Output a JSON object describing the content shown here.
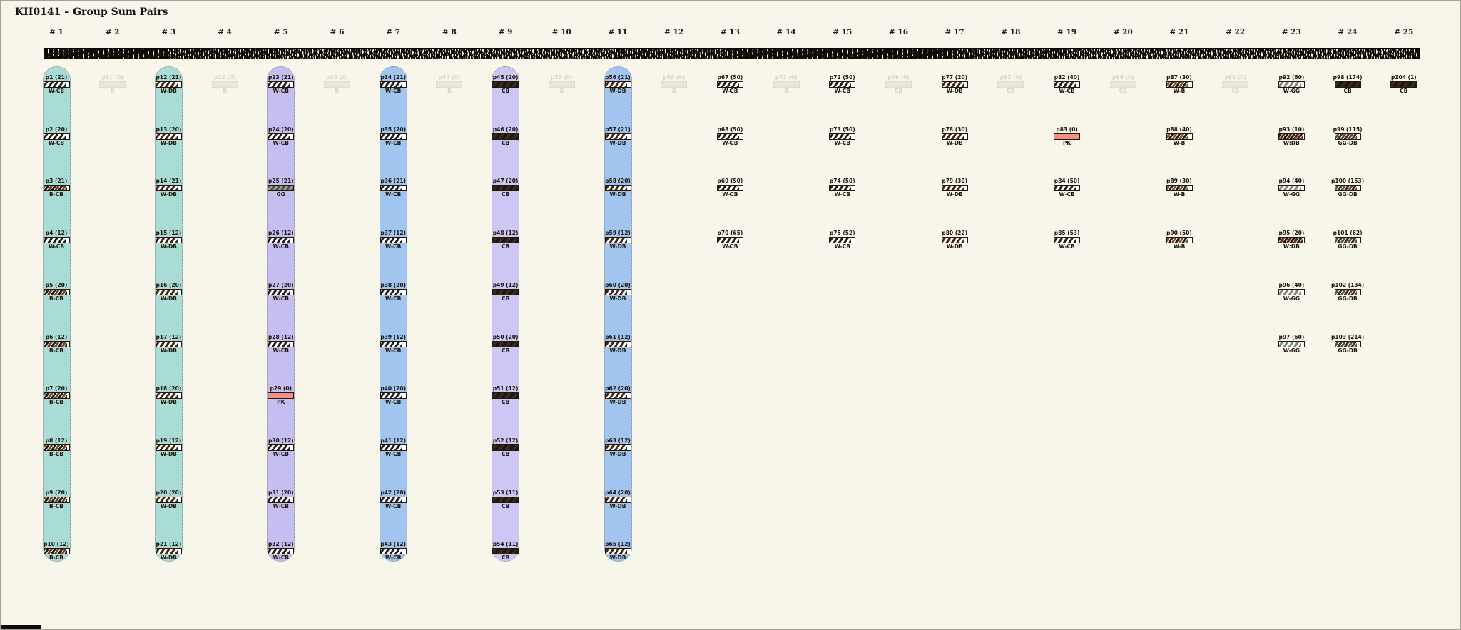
{
  "title": "KH0141 – Group Sum Pairs",
  "palette": {
    "background": "#f8f6eb",
    "pill_teal": "#aadcd6",
    "pill_lavender": "#c5bef1",
    "pill_blue": "#a1c5ef",
    "pill_lavender_alt": "#ccc7f4",
    "label_text": "#1d130a",
    "faded_text": "#dbd4bf",
    "faded_bar": "#ebe6d8"
  },
  "bar_styles": {
    "W-CB": {
      "type": "stripes",
      "colors": [
        "#261d14"
      ],
      "bg": "#ffffff",
      "fill": 86
    },
    "W-DB": {
      "type": "stripes",
      "colors": [
        "#4a230d"
      ],
      "bg": "#ffffff",
      "fill": 86
    },
    "B-CB": {
      "type": "stripes",
      "colors": [
        "#23180e",
        "#71451f"
      ],
      "bg": "#ffffff",
      "fill": 92
    },
    "CB": {
      "type": "stripes",
      "colors": [
        "#1f150c",
        "#3b2c1b"
      ],
      "bg": "#2a1e12",
      "fill": 100
    },
    "GG": {
      "type": "stripes",
      "colors": [
        "#49533d"
      ],
      "bg": "#9aa390",
      "fill": 100
    },
    "PK": {
      "type": "solid",
      "bg": "#f2917f",
      "fill": 100
    },
    "W-B": {
      "type": "stripes",
      "colors": [
        "#8d5422",
        "#2a2018"
      ],
      "bg": "#ffffff",
      "fill": 84
    },
    "W-GG": {
      "type": "stripes",
      "colors": [
        "#7d8871"
      ],
      "bg": "#ffffff",
      "fill": 88
    },
    "W:DB": {
      "type": "stripes",
      "colors": [
        "#5c2a16",
        "#241c14"
      ],
      "bg": "#efd3c6",
      "fill": 96
    },
    "GG-DB": {
      "type": "stripes",
      "colors": [
        "#4b5540",
        "#54241a"
      ],
      "bg": "#ffffff",
      "fill": 88
    },
    "B": {
      "type": "empty"
    }
  },
  "columns": [
    {
      "header": "# 1",
      "pill": "pill_teal",
      "items": [
        {
          "label": "p1 (21)",
          "code": "W-CB"
        },
        {
          "label": "p2 (20)",
          "code": "W-CB"
        },
        {
          "label": "p3 (21)",
          "code": "B-CB"
        },
        {
          "label": "p4 (12)",
          "code": "W-CB"
        },
        {
          "label": "p5 (20)",
          "code": "B-CB"
        },
        {
          "label": "p6 (12)",
          "code": "B-CB"
        },
        {
          "label": "p7 (20)",
          "code": "B-CB"
        },
        {
          "label": "p8 (12)",
          "code": "B-CB"
        },
        {
          "label": "p9 (20)",
          "code": "B-CB"
        },
        {
          "label": "p10 (12)",
          "code": "B-CB"
        }
      ]
    },
    {
      "header": "# 2",
      "pill": null,
      "items": [
        {
          "label": "p11 (0)",
          "code": "B",
          "faded": true
        }
      ]
    },
    {
      "header": "# 3",
      "pill": "pill_teal",
      "items": [
        {
          "label": "p12 (21)",
          "code": "W-DB"
        },
        {
          "label": "p13 (20)",
          "code": "W-DB"
        },
        {
          "label": "p14 (21)",
          "code": "W-DB"
        },
        {
          "label": "p15 (12)",
          "code": "W-DB"
        },
        {
          "label": "p16 (20)",
          "code": "W-DB"
        },
        {
          "label": "p17 (12)",
          "code": "W-DB"
        },
        {
          "label": "p18 (20)",
          "code": "W-DB"
        },
        {
          "label": "p19 (12)",
          "code": "W-DB"
        },
        {
          "label": "p20 (20)",
          "code": "W-DB"
        },
        {
          "label": "p21 (12)",
          "code": "W-DB"
        }
      ]
    },
    {
      "header": "# 4",
      "pill": null,
      "items": [
        {
          "label": "p22 (0)",
          "code": "B",
          "faded": true
        }
      ]
    },
    {
      "header": "# 5",
      "pill": "pill_lavender",
      "items": [
        {
          "label": "p23 (21)",
          "code": "W-CB"
        },
        {
          "label": "p24 (20)",
          "code": "W-CB"
        },
        {
          "label": "p25 (21)",
          "code": "GG"
        },
        {
          "label": "p26 (12)",
          "code": "W-CB"
        },
        {
          "label": "p27 (20)",
          "code": "W-CB"
        },
        {
          "label": "p28 (12)",
          "code": "W-CB"
        },
        {
          "label": "p29 (0)",
          "code": "PK"
        },
        {
          "label": "p30 (12)",
          "code": "W-CB"
        },
        {
          "label": "p31 (20)",
          "code": "W-CB"
        },
        {
          "label": "p32 (12)",
          "code": "W-CB"
        }
      ]
    },
    {
      "header": "# 6",
      "pill": null,
      "items": [
        {
          "label": "p33 (0)",
          "code": "B",
          "faded": true
        }
      ]
    },
    {
      "header": "# 7",
      "pill": "pill_blue",
      "items": [
        {
          "label": "p34 (21)",
          "code": "W-CB"
        },
        {
          "label": "p35 (20)",
          "code": "W-CB"
        },
        {
          "label": "p36 (21)",
          "code": "W-CB"
        },
        {
          "label": "p37 (12)",
          "code": "W-CB"
        },
        {
          "label": "p38 (20)",
          "code": "W-CB"
        },
        {
          "label": "p39 (12)",
          "code": "W-CB"
        },
        {
          "label": "p40 (20)",
          "code": "W-CB"
        },
        {
          "label": "p41 (12)",
          "code": "W-CB"
        },
        {
          "label": "p42 (20)",
          "code": "W-CB"
        },
        {
          "label": "p43 (12)",
          "code": "W-CB"
        }
      ]
    },
    {
      "header": "# 8",
      "pill": null,
      "items": [
        {
          "label": "p44 (0)",
          "code": "B",
          "faded": true
        }
      ]
    },
    {
      "header": "# 9",
      "pill": "pill_lavender_alt",
      "items": [
        {
          "label": "p45 (20)",
          "code": "CB"
        },
        {
          "label": "p46 (20)",
          "code": "CB"
        },
        {
          "label": "p47 (20)",
          "code": "CB"
        },
        {
          "label": "p48 (12)",
          "code": "CB"
        },
        {
          "label": "p49 (12)",
          "code": "CB"
        },
        {
          "label": "p50 (20)",
          "code": "CB"
        },
        {
          "label": "p51 (12)",
          "code": "CB"
        },
        {
          "label": "p52 (12)",
          "code": "CB"
        },
        {
          "label": "p53 (11)",
          "code": "CB"
        },
        {
          "label": "p54 (11)",
          "code": "CB"
        }
      ]
    },
    {
      "header": "# 10",
      "pill": null,
      "items": [
        {
          "label": "p55 (0)",
          "code": "B",
          "faded": true
        }
      ]
    },
    {
      "header": "# 11",
      "pill": "pill_blue",
      "items": [
        {
          "label": "p56 (21)",
          "code": "W-DB"
        },
        {
          "label": "p57 (21)",
          "code": "W-DB"
        },
        {
          "label": "p58 (20)",
          "code": "W-DB"
        },
        {
          "label": "p59 (12)",
          "code": "W-DB"
        },
        {
          "label": "p60 (20)",
          "code": "W-DB"
        },
        {
          "label": "p61 (12)",
          "code": "W-DB"
        },
        {
          "label": "p62 (20)",
          "code": "W-DB"
        },
        {
          "label": "p63 (12)",
          "code": "W-DB"
        },
        {
          "label": "p64 (20)",
          "code": "W-DB"
        },
        {
          "label": "p65 (12)",
          "code": "W-DB"
        }
      ]
    },
    {
      "header": "# 12",
      "pill": null,
      "items": [
        {
          "label": "p66 (0)",
          "code": "B",
          "faded": true
        }
      ]
    },
    {
      "header": "# 13",
      "pill": null,
      "items": [
        {
          "label": "p67 (50)",
          "code": "W-CB"
        },
        {
          "label": "p68 (50)",
          "code": "W-CB"
        },
        {
          "label": "p69 (50)",
          "code": "W-CB"
        },
        {
          "label": "p70 (65)",
          "code": "W-CB"
        }
      ]
    },
    {
      "header": "# 14",
      "pill": null,
      "items": [
        {
          "label": "p71 (0)",
          "code": "B",
          "faded": true
        }
      ]
    },
    {
      "header": "# 15",
      "pill": null,
      "items": [
        {
          "label": "p72 (50)",
          "code": "W-CB"
        },
        {
          "label": "p73 (50)",
          "code": "W-CB"
        },
        {
          "label": "p74 (50)",
          "code": "W-CB"
        },
        {
          "label": "p75 (52)",
          "code": "W-CB"
        }
      ]
    },
    {
      "header": "# 16",
      "pill": null,
      "items": [
        {
          "label": "p76 (0)",
          "code": "CB",
          "faded": true
        }
      ]
    },
    {
      "header": "# 17",
      "pill": null,
      "items": [
        {
          "label": "p77 (20)",
          "code": "W-DB"
        },
        {
          "label": "p78 (30)",
          "code": "W-DB"
        },
        {
          "label": "p79 (30)",
          "code": "W-DB"
        },
        {
          "label": "p80 (22)",
          "code": "W-DB"
        }
      ]
    },
    {
      "header": "# 18",
      "pill": null,
      "items": [
        {
          "label": "p81 (0)",
          "code": "CB",
          "faded": true
        }
      ]
    },
    {
      "header": "# 19",
      "pill": null,
      "items": [
        {
          "label": "p82 (40)",
          "code": "W-CB"
        },
        {
          "label": "p83 (0)",
          "code": "PK"
        },
        {
          "label": "p84 (50)",
          "code": "W-CB"
        },
        {
          "label": "p85 (53)",
          "code": "W-CB"
        }
      ]
    },
    {
      "header": "# 20",
      "pill": null,
      "items": [
        {
          "label": "p86 (0)",
          "code": "CB",
          "faded": true
        }
      ]
    },
    {
      "header": "# 21",
      "pill": null,
      "items": [
        {
          "label": "p87 (30)",
          "code": "W-B"
        },
        {
          "label": "p88 (40)",
          "code": "W-B"
        },
        {
          "label": "p89 (30)",
          "code": "W-B"
        },
        {
          "label": "p90 (50)",
          "code": "W-B"
        }
      ]
    },
    {
      "header": "# 22",
      "pill": null,
      "items": [
        {
          "label": "p91 (0)",
          "code": "CB",
          "faded": true
        }
      ]
    },
    {
      "header": "# 23",
      "pill": null,
      "items": [
        {
          "label": "p92 (60)",
          "code": "W-GG"
        },
        {
          "label": "p93 (10)",
          "code": "W:DB"
        },
        {
          "label": "p94 (40)",
          "code": "W-GG"
        },
        {
          "label": "p95 (20)",
          "code": "W:DB"
        },
        {
          "label": "p96 (40)",
          "code": "W-GG"
        },
        {
          "label": "p97 (60)",
          "code": "W-GG"
        }
      ]
    },
    {
      "header": "# 24",
      "pill": null,
      "items": [
        {
          "label": "p98 (174)",
          "code": "CB"
        },
        {
          "label": "p99 (115)",
          "code": "GG-DB"
        },
        {
          "label": "p100 (153)",
          "code": "GG-DB"
        },
        {
          "label": "p101 (62)",
          "code": "GG-DB"
        },
        {
          "label": "p102 (134)",
          "code": "GG-DB"
        },
        {
          "label": "p103 (214)",
          "code": "GG-DB"
        }
      ]
    },
    {
      "header": "# 25",
      "pill": null,
      "items": [
        {
          "label": "p104 (1)",
          "code": "CB"
        }
      ]
    }
  ]
}
